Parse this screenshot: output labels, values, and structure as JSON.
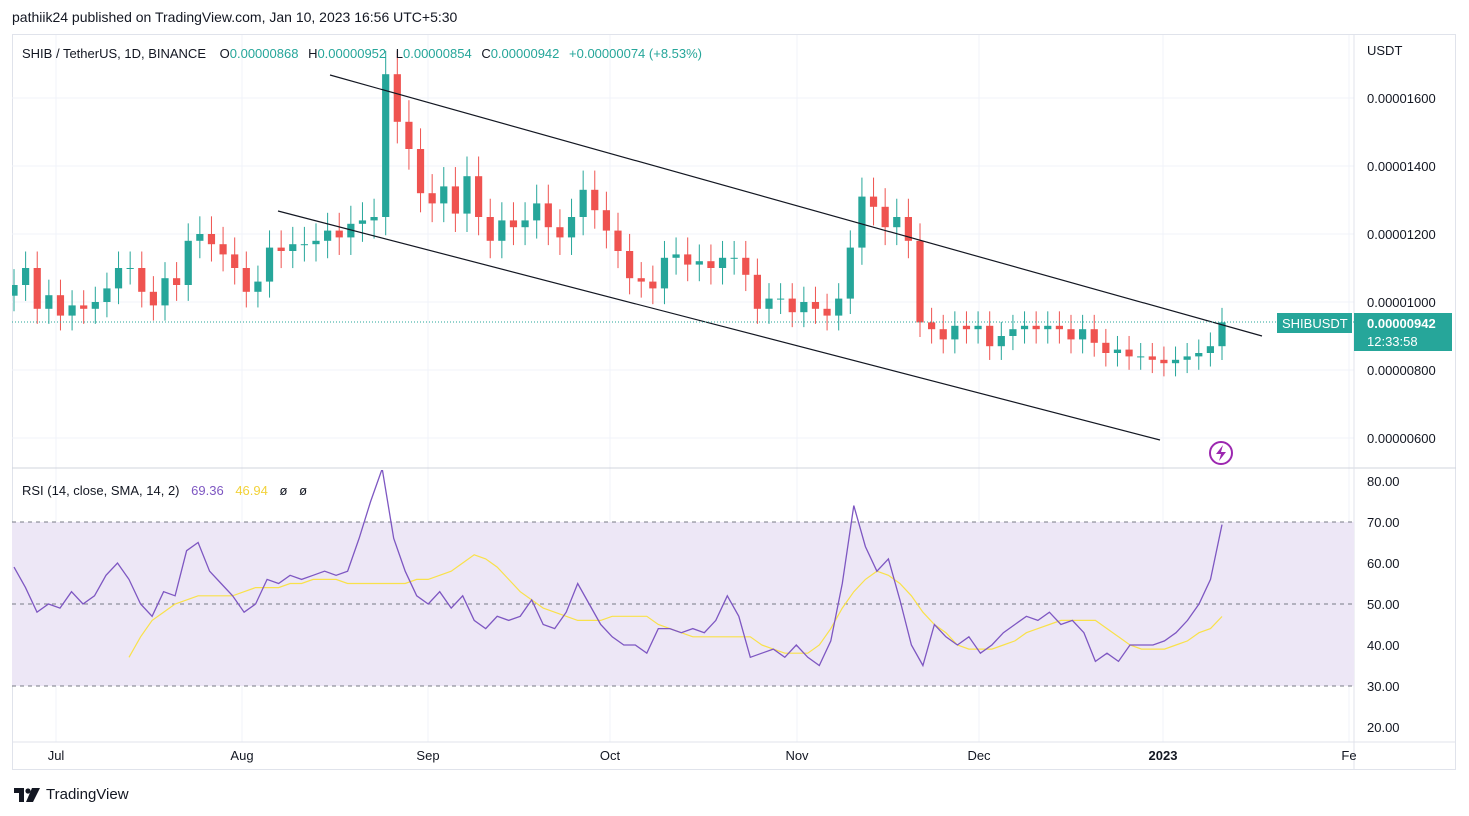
{
  "header": {
    "published": "pathiik24 published on TradingView.com, Jan 10, 2023 16:56 UTC+5:30"
  },
  "legend": {
    "symbol": "SHIB / TetherUS, 1D, BINANCE",
    "o_label": "O",
    "o": "0.00000868",
    "h_label": "H",
    "h": "0.00000952",
    "l_label": "L",
    "l": "0.00000854",
    "c_label": "C",
    "c": "0.00000942",
    "change": "+0.00000074 (+8.53%)"
  },
  "price_axis": {
    "unit": "USDT",
    "ticks": [
      "0.00001600",
      "0.00001400",
      "0.00001200",
      "0.00001000",
      "0.00000800",
      "0.00000600"
    ]
  },
  "last_price": {
    "symbol": "SHIBUSDT",
    "price": "0.00000942",
    "countdown": "12:33:58"
  },
  "rsi_legend": {
    "label": "RSI (14, close, SMA, 14, 2)",
    "rsi": "69.36",
    "sma": "46.94",
    "x1": "ø",
    "x2": "ø"
  },
  "rsi_axis": {
    "ticks": [
      "80.00",
      "70.00",
      "60.00",
      "50.00",
      "40.00",
      "30.00",
      "20.00"
    ]
  },
  "time_axis": {
    "labels": [
      "Jul",
      "Aug",
      "Sep",
      "Oct",
      "Nov",
      "Dec",
      "2023",
      "Fe"
    ]
  },
  "footer": {
    "brand": "TradingView"
  },
  "colors": {
    "up": "#26a69a",
    "down": "#ef5350",
    "rsi_line": "#7e57c2",
    "rsi_sma": "#f9e14a",
    "rsi_band": "#ede7f6",
    "accent": "#9c27b0"
  },
  "chart_data": [
    {
      "type": "candlestick",
      "symbol": "SHIB / TetherUS",
      "interval": "1D",
      "exchange": "BINANCE",
      "ylabel": "USDT",
      "ylim": [
        5.4e-06,
        1.78e-05
      ],
      "x_start": "2022-06-21",
      "x_end": "2023-01-10",
      "closes_approx": [
        1.05e-05,
        1.1e-05,
        9.8e-06,
        1.02e-05,
        9.6e-06,
        9.9e-06,
        9.8e-06,
        1e-05,
        1.04e-05,
        1.1e-05,
        1.1e-05,
        1.03e-05,
        9.9e-06,
        1.07e-05,
        1.05e-05,
        1.18e-05,
        1.2e-05,
        1.17e-05,
        1.14e-05,
        1.1e-05,
        1.03e-05,
        1.06e-05,
        1.16e-05,
        1.15e-05,
        1.17e-05,
        1.17e-05,
        1.18e-05,
        1.21e-05,
        1.19e-05,
        1.23e-05,
        1.24e-05,
        1.25e-05,
        1.67e-05,
        1.53e-05,
        1.45e-05,
        1.32e-05,
        1.29e-05,
        1.34e-05,
        1.26e-05,
        1.37e-05,
        1.25e-05,
        1.18e-05,
        1.24e-05,
        1.22e-05,
        1.24e-05,
        1.29e-05,
        1.22e-05,
        1.19e-05,
        1.25e-05,
        1.33e-05,
        1.27e-05,
        1.21e-05,
        1.15e-05,
        1.07e-05,
        1.06e-05,
        1.04e-05,
        1.13e-05,
        1.14e-05,
        1.11e-05,
        1.12e-05,
        1.1e-05,
        1.13e-05,
        1.13e-05,
        1.08e-05,
        9.8e-06,
        1.01e-05,
        1.01e-05,
        9.7e-06,
        1e-05,
        9.8e-06,
        9.6e-06,
        1.01e-05,
        1.16e-05,
        1.31e-05,
        1.28e-05,
        1.22e-05,
        1.25e-05,
        1.18e-05,
        9.4e-06,
        9.2e-06,
        8.9e-06,
        9.3e-06,
        9.2e-06,
        9.3e-06,
        8.7e-06,
        9e-06,
        9.2e-06,
        9.3e-06,
        9.2e-06,
        9.3e-06,
        9.2e-06,
        8.9e-06,
        9.2e-06,
        8.8e-06,
        8.5e-06,
        8.6e-06,
        8.4e-06,
        8.4e-06,
        8.3e-06,
        8.2e-06,
        8.3e-06,
        8.4e-06,
        8.5e-06,
        8.7e-06,
        9.4e-06
      ]
    },
    {
      "type": "line",
      "title": "RSI (14, close, SMA, 14, 2)",
      "ylim": [
        20,
        80
      ],
      "bands": [
        30,
        50,
        70
      ],
      "series": [
        {
          "name": "RSI",
          "values": [
            59,
            54,
            48,
            50,
            49,
            53,
            50,
            52,
            57,
            60,
            56,
            50,
            47,
            53,
            52,
            63,
            65,
            58,
            55,
            52,
            48,
            50,
            56,
            55,
            57,
            56,
            57,
            58,
            57,
            58,
            66,
            75,
            83,
            66,
            58,
            52,
            50,
            53,
            49,
            52,
            46,
            44,
            47,
            46,
            47,
            51,
            45,
            44,
            48,
            55,
            50,
            45,
            42,
            40,
            40,
            38,
            44,
            44,
            43,
            44,
            43,
            46,
            52,
            47,
            37,
            38,
            39,
            37,
            40,
            37,
            35,
            41,
            55,
            74,
            64,
            58,
            61,
            51,
            40,
            35,
            45,
            42,
            40,
            42,
            38,
            40,
            43,
            45,
            47,
            46,
            48,
            45,
            46,
            43,
            36,
            38,
            36,
            40,
            40,
            40,
            41,
            43,
            46,
            50,
            56,
            69.36
          ]
        },
        {
          "name": "SMA",
          "values": [
            37,
            42,
            46,
            48,
            50,
            51,
            52,
            52,
            52,
            52,
            53,
            54,
            54,
            54,
            55,
            55,
            56,
            56,
            56,
            55,
            55,
            55,
            55,
            55,
            55,
            56,
            56,
            57,
            58,
            60,
            62,
            61,
            59,
            56,
            53,
            51,
            49,
            48,
            47,
            46,
            46,
            46,
            47,
            47,
            47,
            47,
            45,
            44,
            43,
            42,
            42,
            42,
            42,
            42,
            42,
            40,
            39,
            38,
            38,
            38,
            40,
            44,
            49,
            53,
            56,
            58,
            57,
            55,
            52,
            48,
            45,
            43,
            40,
            39,
            39,
            39,
            40,
            41,
            43,
            44,
            45,
            46,
            46,
            46,
            46,
            44,
            42,
            40,
            39,
            39,
            39,
            40,
            41,
            43,
            44,
            46.94
          ]
        }
      ]
    }
  ]
}
